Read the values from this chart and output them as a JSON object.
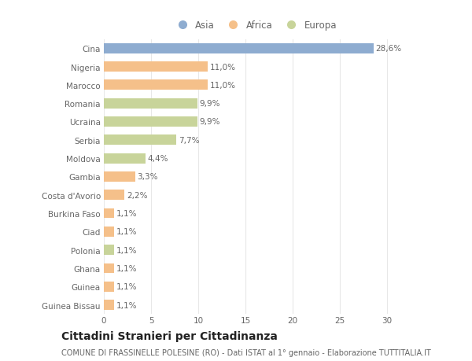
{
  "categories": [
    "Guinea Bissau",
    "Guinea",
    "Ghana",
    "Polonia",
    "Ciad",
    "Burkina Faso",
    "Costa d'Avorio",
    "Gambia",
    "Moldova",
    "Serbia",
    "Ucraina",
    "Romania",
    "Marocco",
    "Nigeria",
    "Cina"
  ],
  "values": [
    1.1,
    1.1,
    1.1,
    1.1,
    1.1,
    1.1,
    2.2,
    3.3,
    4.4,
    7.7,
    9.9,
    9.9,
    11.0,
    11.0,
    28.6
  ],
  "labels": [
    "1,1%",
    "1,1%",
    "1,1%",
    "1,1%",
    "1,1%",
    "1,1%",
    "2,2%",
    "3,3%",
    "4,4%",
    "7,7%",
    "9,9%",
    "9,9%",
    "11,0%",
    "11,0%",
    "28,6%"
  ],
  "colors": [
    "#F5C08A",
    "#F5C08A",
    "#F5C08A",
    "#C8D49A",
    "#F5C08A",
    "#F5C08A",
    "#F5C08A",
    "#F5C08A",
    "#C8D49A",
    "#C8D49A",
    "#C8D49A",
    "#C8D49A",
    "#F5C08A",
    "#F5C08A",
    "#8EACD0"
  ],
  "legend_labels": [
    "Asia",
    "Africa",
    "Europa"
  ],
  "legend_colors": [
    "#8EACD0",
    "#F5C08A",
    "#C8D49A"
  ],
  "xlim": [
    0,
    32
  ],
  "xticks": [
    0,
    5,
    10,
    15,
    20,
    25,
    30
  ],
  "title": "Cittadini Stranieri per Cittadinanza",
  "subtitle": "COMUNE DI FRASSINELLE POLESINE (RO) - Dati ISTAT al 1° gennaio - Elaborazione TUTTITALIA.IT",
  "bg_color": "#ffffff",
  "grid_color": "#e8e8e8",
  "text_color": "#666666",
  "title_color": "#222222",
  "label_fontsize": 7.5,
  "tick_fontsize": 7.5,
  "title_fontsize": 10,
  "subtitle_fontsize": 7,
  "legend_fontsize": 8.5
}
